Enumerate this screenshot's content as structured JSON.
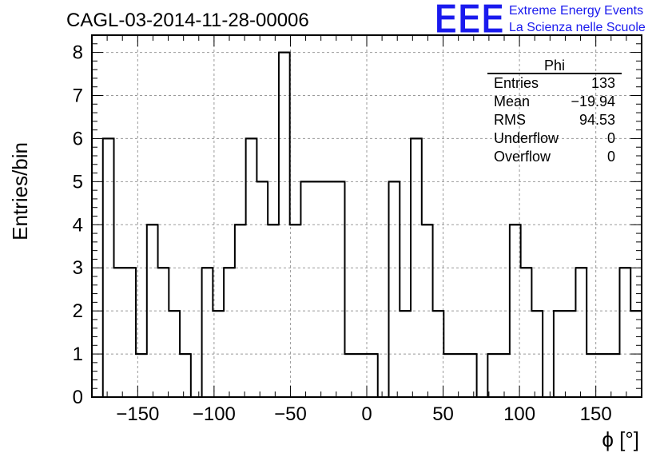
{
  "chart_data": {
    "type": "bar",
    "title": "CAGL-03-2014-11-28-00006",
    "xlabel": "ϕ [°]",
    "ylabel": "Entries/bin",
    "xlim": [
      -180,
      180
    ],
    "ylim": [
      0,
      8.4
    ],
    "bin_width": 7.2,
    "bin_edges_start": -180,
    "x_ticks": [
      -150,
      -100,
      -50,
      0,
      50,
      100,
      150
    ],
    "x_tick_labels": [
      "−150",
      "−100",
      "−50",
      "0",
      "50",
      "100",
      "150"
    ],
    "y_ticks": [
      0,
      1,
      2,
      3,
      4,
      5,
      6,
      7,
      8
    ],
    "y_tick_labels": [
      "0",
      "1",
      "2",
      "3",
      "4",
      "5",
      "6",
      "7",
      "8"
    ],
    "grid": true,
    "values": [
      0,
      6,
      3,
      3,
      1,
      4,
      3,
      2,
      1,
      0,
      3,
      2,
      3,
      4,
      6,
      5,
      4,
      8,
      4,
      5,
      5,
      5,
      5,
      1,
      1,
      1,
      0,
      5,
      2,
      6,
      4,
      2,
      1,
      1,
      1,
      0,
      1,
      1,
      4,
      3,
      2,
      0,
      2,
      2,
      3,
      1,
      1,
      1,
      3,
      2
    ]
  },
  "stats": {
    "name": "Phi",
    "rows": [
      {
        "label": "Entries",
        "value": "133"
      },
      {
        "label": "Mean",
        "value": "−19.94"
      },
      {
        "label": "RMS",
        "value": "94.53"
      },
      {
        "label": "Underflow",
        "value": "0"
      },
      {
        "label": "Overflow",
        "value": "0"
      }
    ]
  },
  "logo": {
    "mark": "EEE",
    "line1": "Extreme Energy Events",
    "line2": "La Scienza nelle Scuole",
    "color": "#1a1aee"
  }
}
